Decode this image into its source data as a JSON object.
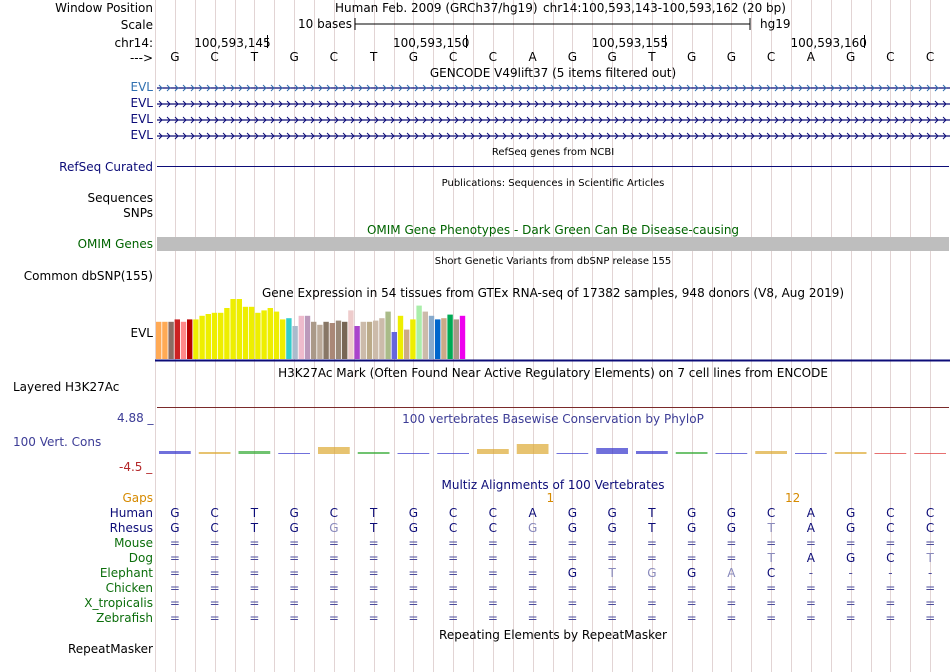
{
  "colors": {
    "gencode": "#0c0c78",
    "refseq": "#0c0c78",
    "omim_bar": "#bebebe",
    "omim_text": "#006400",
    "phylop_label": "#3c3c96",
    "phylop_neg": "#b4282a",
    "multiz_label": "#0c0c78",
    "gaps_label": "#d68a00",
    "grid": "#e2d4d4",
    "gutter": "#f0b8b8"
  },
  "header": {
    "window_position_label": "Window Position",
    "assembly": "Human Feb. 2009 (GRCh37/hg19)",
    "position": "chr14:100,593,143-100,593,162 (20 bp)",
    "scale_label": "Scale",
    "scale_text": "10 bases",
    "scale_db": "hg19",
    "chrom_label": "chr14:",
    "strand_label": "--->",
    "coords": [
      "100,593,145",
      "100,593,150",
      "100,593,155",
      "100,593,160"
    ],
    "sequence": [
      "G",
      "C",
      "T",
      "G",
      "C",
      "T",
      "G",
      "C",
      "C",
      "A",
      "G",
      "G",
      "T",
      "G",
      "G",
      "C",
      "A",
      "G",
      "C",
      "C"
    ]
  },
  "gencode": {
    "title": "GENCODE V49lift37 (5 items filtered out)",
    "rows": [
      "EVL",
      "EVL",
      "EVL",
      "EVL"
    ]
  },
  "refseq": {
    "title": "RefSeq genes from NCBI",
    "label": "RefSeq Curated"
  },
  "publications": {
    "title": "Publications: Sequences in Scientific Articles",
    "labels": [
      "Sequences",
      "SNPs"
    ]
  },
  "omim": {
    "title": "OMIM Gene Phenotypes - Dark Green Can Be Disease-causing",
    "label": "OMIM Genes"
  },
  "dbsnp": {
    "title": "Short Genetic Variants from dbSNP release 155",
    "label": "Common dbSNP(155)"
  },
  "gtex": {
    "title": "Gene Expression in 54 tissues from GTEx RNA-seq of 17382 samples, 948 donors (V8, Aug 2019)",
    "label": "EVL",
    "bars": [
      {
        "value": 0.62,
        "color": "#ffaa55"
      },
      {
        "value": 0.62,
        "color": "#ffaa55"
      },
      {
        "value": 0.62,
        "color": "#8b6d63"
      },
      {
        "value": 0.66,
        "color": "#cc2222"
      },
      {
        "value": 0.62,
        "color": "#ff8888"
      },
      {
        "value": 0.66,
        "color": "#b80000"
      },
      {
        "value": 0.66,
        "color": "#eeee00"
      },
      {
        "value": 0.72,
        "color": "#eeee00"
      },
      {
        "value": 0.75,
        "color": "#eeee00"
      },
      {
        "value": 0.77,
        "color": "#eeee00"
      },
      {
        "value": 0.77,
        "color": "#eeee00"
      },
      {
        "value": 0.85,
        "color": "#eeee00"
      },
      {
        "value": 1.0,
        "color": "#eeee00"
      },
      {
        "value": 1.0,
        "color": "#eeee00"
      },
      {
        "value": 0.87,
        "color": "#eeee00"
      },
      {
        "value": 0.87,
        "color": "#eeee00"
      },
      {
        "value": 0.77,
        "color": "#eeee00"
      },
      {
        "value": 0.81,
        "color": "#eeee00"
      },
      {
        "value": 0.85,
        "color": "#eeee00"
      },
      {
        "value": 0.79,
        "color": "#eeee00"
      },
      {
        "value": 0.66,
        "color": "#eeee00"
      },
      {
        "value": 0.68,
        "color": "#33cccc"
      },
      {
        "value": 0.55,
        "color": "#aabbcc"
      },
      {
        "value": 0.72,
        "color": "#eebbcc"
      },
      {
        "value": 0.72,
        "color": "#bb99bb"
      },
      {
        "value": 0.62,
        "color": "#aa9988"
      },
      {
        "value": 0.57,
        "color": "#bbaa99"
      },
      {
        "value": 0.62,
        "color": "#887766"
      },
      {
        "value": 0.6,
        "color": "#aa8877"
      },
      {
        "value": 0.64,
        "color": "#998877"
      },
      {
        "value": 0.62,
        "color": "#776655"
      },
      {
        "value": 0.81,
        "color": "#eecccc"
      },
      {
        "value": 0.55,
        "color": "#aa44cc"
      },
      {
        "value": 0.62,
        "color": "#ccbbaa"
      },
      {
        "value": 0.62,
        "color": "#bbaa88"
      },
      {
        "value": 0.64,
        "color": "#ccbbaa"
      },
      {
        "value": 0.68,
        "color": "#ccbbaa"
      },
      {
        "value": 0.79,
        "color": "#aabb88"
      },
      {
        "value": 0.45,
        "color": "#6666dd"
      },
      {
        "value": 0.72,
        "color": "#eeee00"
      },
      {
        "value": 0.49,
        "color": "#ccaa88"
      },
      {
        "value": 0.66,
        "color": "#eeee00"
      },
      {
        "value": 0.89,
        "color": "#aaeeaa"
      },
      {
        "value": 0.79,
        "color": "#ccbbaa"
      },
      {
        "value": 0.72,
        "color": "#88aacc"
      },
      {
        "value": 0.66,
        "color": "#0066cc"
      },
      {
        "value": 0.68,
        "color": "#ccaa88"
      },
      {
        "value": 0.74,
        "color": "#00aa55"
      },
      {
        "value": 0.66,
        "color": "#aa9988"
      },
      {
        "value": 0.72,
        "color": "#ee00ee"
      }
    ]
  },
  "h3k27ac": {
    "title": "H3K27Ac Mark (Often Found Near Active Regulatory Elements) on 7 cell lines from ENCODE",
    "label": "Layered H3K27Ac"
  },
  "phylop": {
    "title": "100 vertebrates Basewise Conservation by PhyloP",
    "label": "100 Vert. Cons",
    "max": "4.88 _",
    "min": "-4.5 _"
  },
  "multiz": {
    "title": "Multiz Alignments of 100 Vertebrates",
    "gaps_label": "Gaps",
    "gap_marks": [
      {
        "col": 9,
        "text": "1"
      },
      {
        "col": 15,
        "text": "12"
      }
    ],
    "rows": [
      {
        "species": "Human",
        "bases": [
          "G",
          "C",
          "T",
          "G",
          "C",
          "T",
          "G",
          "C",
          "C",
          "A",
          "G",
          "G",
          "T",
          "G",
          "G",
          "C",
          "A",
          "G",
          "C",
          "C"
        ]
      },
      {
        "species": "Rhesus",
        "bases": [
          "G",
          "C",
          "T",
          "G",
          "G",
          "T",
          "G",
          "C",
          "C",
          "G",
          "G",
          "G",
          "T",
          "G",
          "G",
          "T",
          "A",
          "G",
          "C",
          "C"
        ]
      },
      {
        "species": "Mouse",
        "bases": [
          "=",
          "=",
          "=",
          "=",
          "=",
          "=",
          "=",
          "=",
          "=",
          "=",
          "=",
          "=",
          "=",
          "=",
          "=",
          "=",
          "=",
          "=",
          "=",
          "="
        ]
      },
      {
        "species": "Dog",
        "bases": [
          "=",
          "=",
          "=",
          "=",
          "=",
          "=",
          "=",
          "=",
          "=",
          "=",
          "=",
          "=",
          "=",
          "=",
          "=",
          "T",
          "A",
          "G",
          "C",
          "T"
        ]
      },
      {
        "species": "Elephant",
        "bases": [
          "=",
          "=",
          "=",
          "=",
          "=",
          "=",
          "=",
          "=",
          "=",
          "=",
          "G",
          "T",
          "G",
          "G",
          "A",
          "C",
          "-",
          "-",
          "-",
          "-"
        ]
      },
      {
        "species": "Chicken",
        "bases": [
          "=",
          "=",
          "=",
          "=",
          "=",
          "=",
          "=",
          "=",
          "=",
          "=",
          "=",
          "=",
          "=",
          "=",
          "=",
          "=",
          "=",
          "=",
          "=",
          "="
        ]
      },
      {
        "species": "X_tropicalis",
        "bases": [
          "=",
          "=",
          "=",
          "=",
          "=",
          "=",
          "=",
          "=",
          "=",
          "=",
          "=",
          "=",
          "=",
          "=",
          "=",
          "=",
          "=",
          "=",
          "=",
          "="
        ]
      },
      {
        "species": "Zebrafish",
        "bases": [
          "=",
          "=",
          "=",
          "=",
          "=",
          "=",
          "=",
          "=",
          "=",
          "=",
          "=",
          "=",
          "=",
          "=",
          "=",
          "=",
          "=",
          "=",
          "=",
          "="
        ]
      }
    ]
  },
  "repeatmasker": {
    "title": "Repeating Elements by RepeatMasker",
    "label": "RepeatMasker"
  }
}
